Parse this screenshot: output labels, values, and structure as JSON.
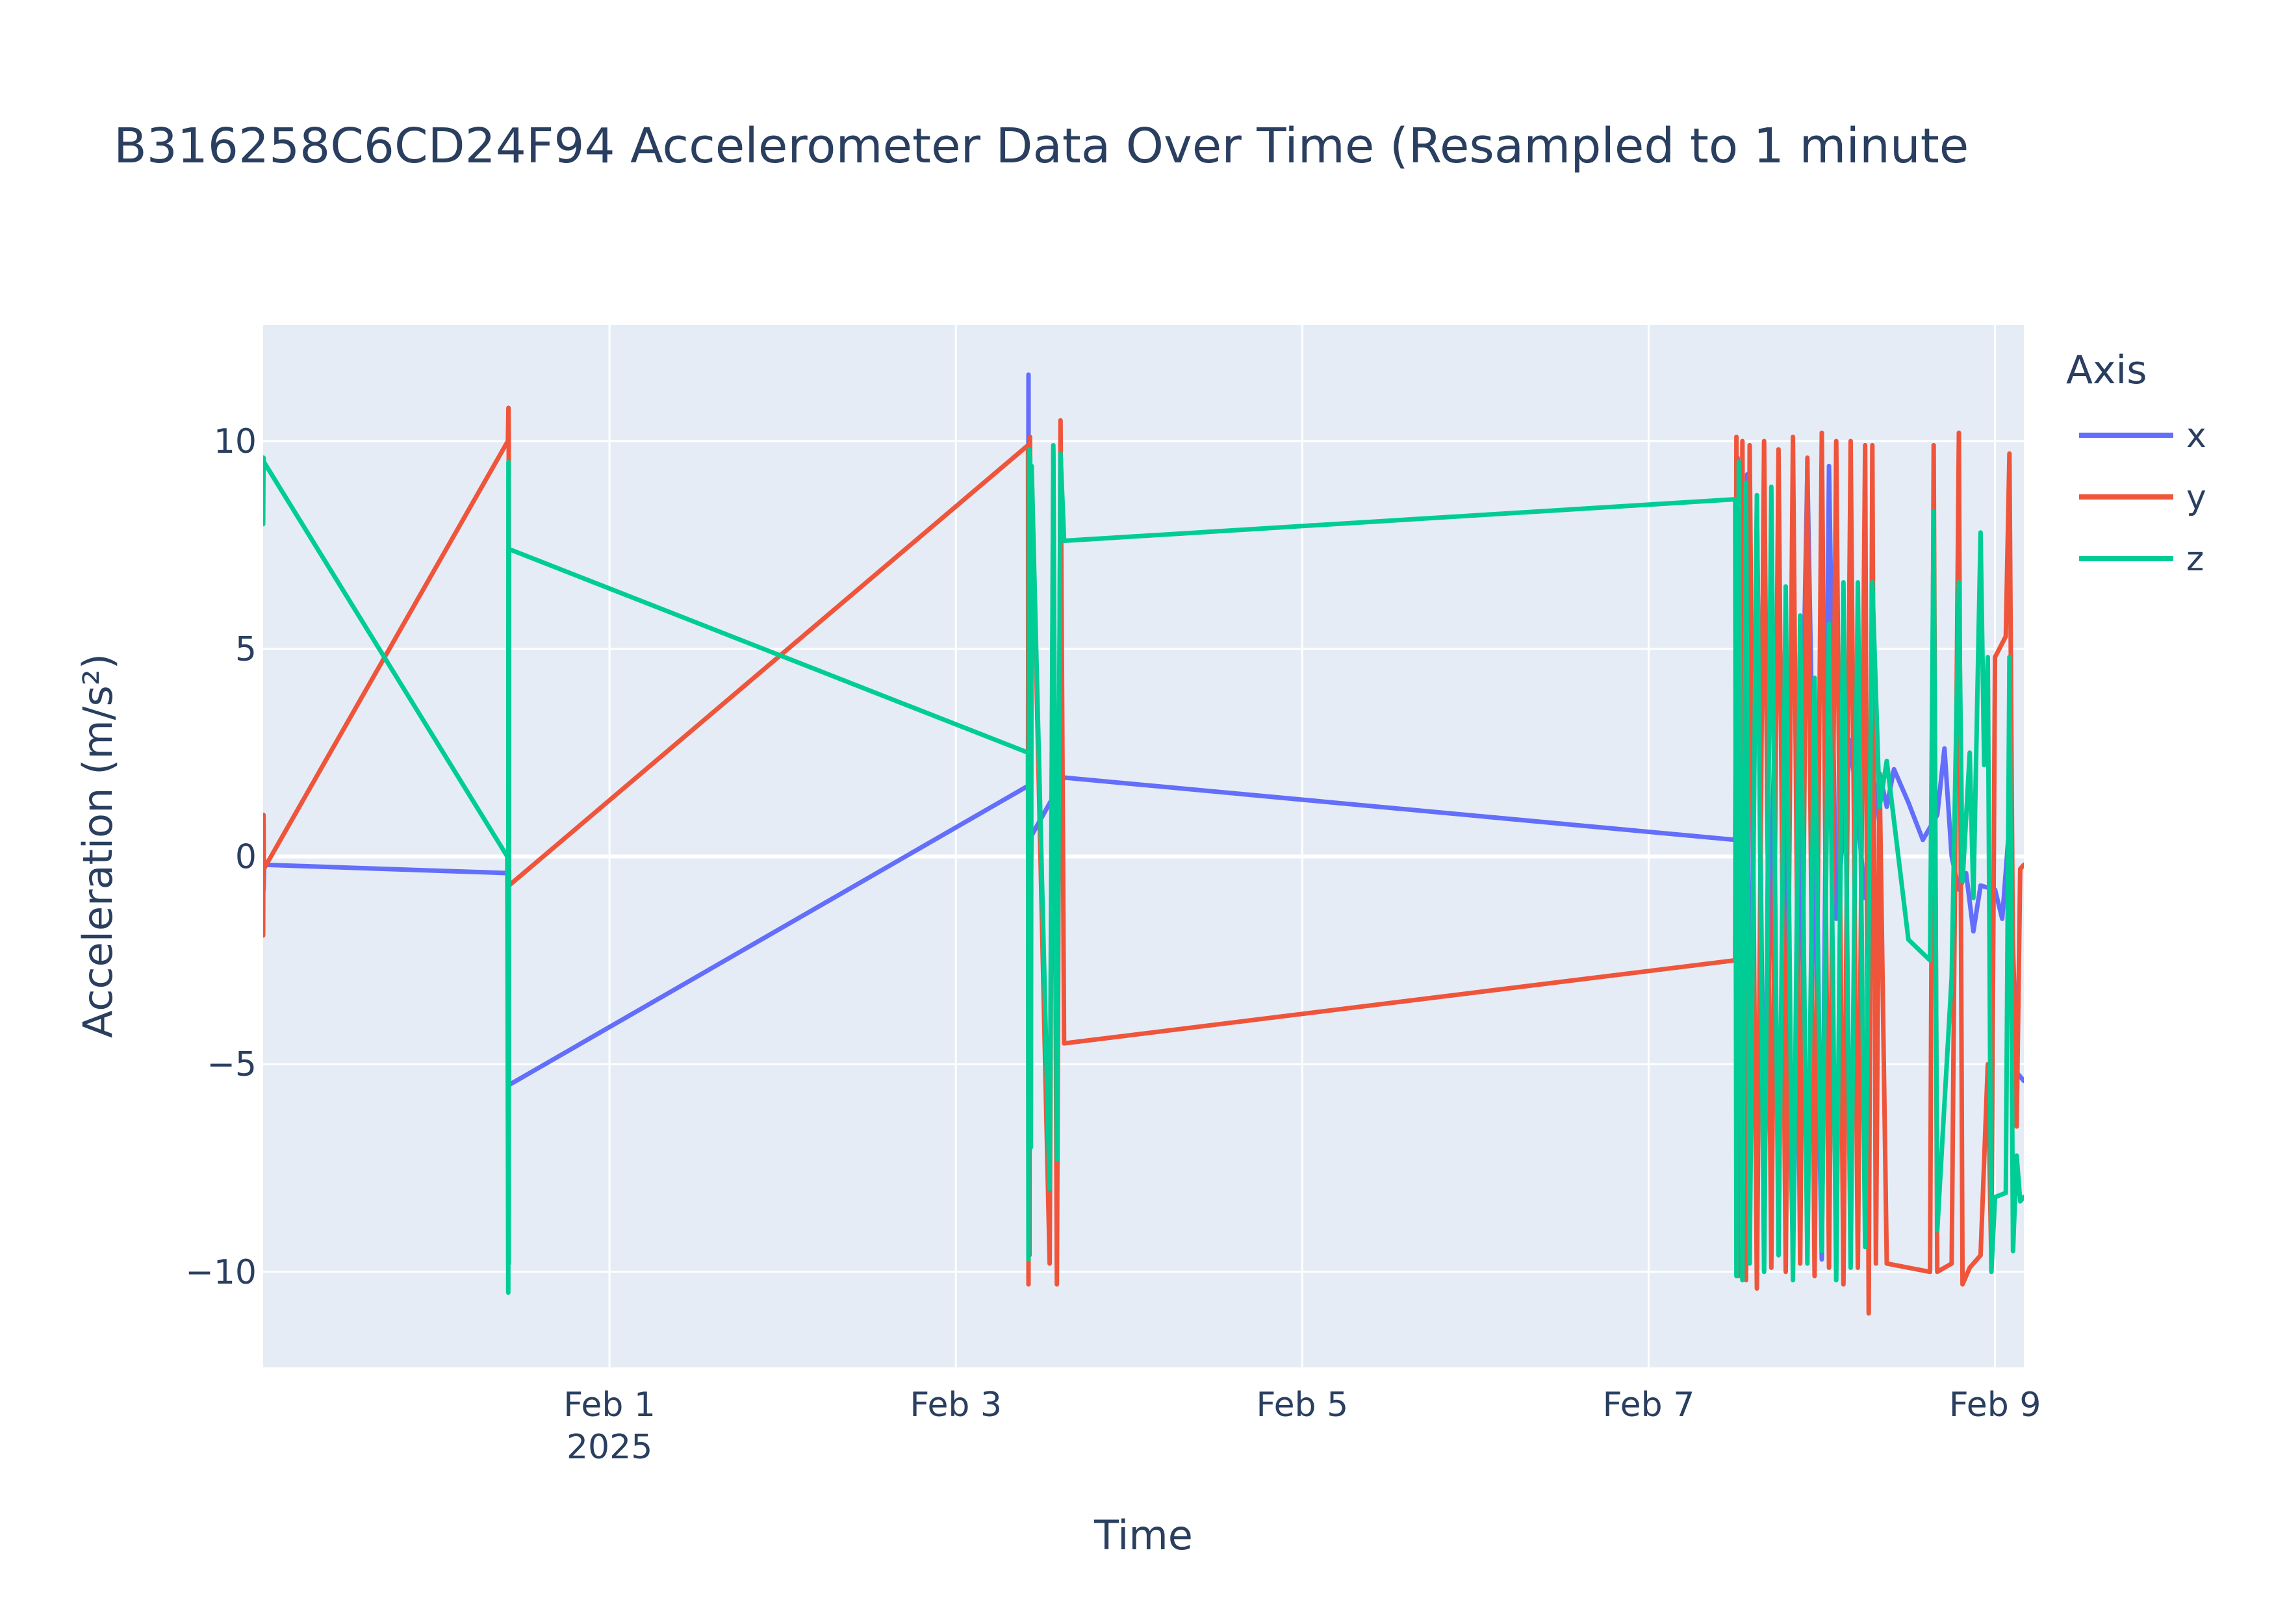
{
  "chart_data": {
    "type": "line",
    "title": "B316258C6CD24F94 Accelerometer Data Over Time (Resampled to 1 minute",
    "xlabel": "Time",
    "ylabel": "Acceleration (m/s²)",
    "xlim": [
      "2025-01-30 00:00",
      "2025-02-09 04:00"
    ],
    "ylim": [
      -12.3,
      12.8
    ],
    "x_ticks": [
      {
        "x": "2025-02-01 00:00",
        "label": "Feb 1",
        "sublabel": "2025"
      },
      {
        "x": "2025-02-03 00:00",
        "label": "Feb 3",
        "sublabel": ""
      },
      {
        "x": "2025-02-05 00:00",
        "label": "Feb 5",
        "sublabel": ""
      },
      {
        "x": "2025-02-07 00:00",
        "label": "Feb 7",
        "sublabel": ""
      },
      {
        "x": "2025-02-09 00:00",
        "label": "Feb 9",
        "sublabel": ""
      }
    ],
    "y_ticks": [
      {
        "y": 10,
        "label": "10"
      },
      {
        "y": 5,
        "label": "5"
      },
      {
        "y": 0,
        "label": "0"
      },
      {
        "y": -5,
        "label": "−5"
      },
      {
        "y": -10,
        "label": "−10"
      }
    ],
    "grid": true,
    "legend": {
      "title": "Axis",
      "position": "right"
    },
    "series": [
      {
        "name": "x",
        "color": "#636efa",
        "points": [
          [
            "2025-01-30 00:00",
            -0.3
          ],
          [
            "2025-01-30 00:04",
            -0.8
          ],
          [
            "2025-01-30 00:08",
            -0.2
          ],
          [
            "2025-01-31 10:00",
            -0.4
          ],
          [
            "2025-01-31 10:02",
            0.2
          ],
          [
            "2025-01-31 10:04",
            -5.5
          ],
          [
            "2025-02-03 10:00",
            1.7
          ],
          [
            "2025-02-03 10:04",
            11.6
          ],
          [
            "2025-02-03 10:08",
            -3.0
          ],
          [
            "2025-02-03 10:14",
            9.5
          ],
          [
            "2025-02-03 10:20",
            -2.0
          ],
          [
            "2025-02-03 10:28",
            0.5
          ],
          [
            "2025-02-03 15:00",
            1.9
          ],
          [
            "2025-02-07 12:00",
            0.4
          ],
          [
            "2025-02-07 12:20",
            9.6
          ],
          [
            "2025-02-07 12:40",
            -9.5
          ],
          [
            "2025-02-07 13:00",
            9.4
          ],
          [
            "2025-02-07 13:20",
            -9.6
          ],
          [
            "2025-02-07 13:40",
            9.2
          ],
          [
            "2025-02-07 14:00",
            -9.0
          ],
          [
            "2025-02-07 15:00",
            8.5
          ],
          [
            "2025-02-07 16:00",
            -8.0
          ],
          [
            "2025-02-07 18:00",
            7.0
          ],
          [
            "2025-02-07 20:00",
            -9.5
          ],
          [
            "2025-02-07 22:00",
            9.3
          ],
          [
            "2025-02-08 00:00",
            -9.7
          ],
          [
            "2025-02-08 01:00",
            9.4
          ],
          [
            "2025-02-08 02:00",
            -1.5
          ],
          [
            "2025-02-08 04:00",
            2.8
          ],
          [
            "2025-02-08 06:00",
            -1.0
          ],
          [
            "2025-02-08 08:00",
            2.0
          ],
          [
            "2025-02-08 09:00",
            1.2
          ],
          [
            "2025-02-08 10:00",
            2.1
          ],
          [
            "2025-02-08 12:00",
            1.3
          ],
          [
            "2025-02-08 14:00",
            0.4
          ],
          [
            "2025-02-08 16:00",
            1.0
          ],
          [
            "2025-02-08 17:00",
            2.6
          ],
          [
            "2025-02-08 18:00",
            0.0
          ],
          [
            "2025-02-08 19:00",
            -0.8
          ],
          [
            "2025-02-08 20:00",
            -0.4
          ],
          [
            "2025-02-08 21:00",
            -1.8
          ],
          [
            "2025-02-08 22:00",
            -0.7
          ],
          [
            "2025-02-09 00:00",
            -0.8
          ],
          [
            "2025-02-09 01:00",
            -1.5
          ],
          [
            "2025-02-09 02:00",
            0.8
          ],
          [
            "2025-02-09 03:00",
            -5.2
          ],
          [
            "2025-02-09 04:00",
            -5.4
          ]
        ]
      },
      {
        "name": "y",
        "color": "#ef553b",
        "points": [
          [
            "2025-01-30 00:00",
            -1.9
          ],
          [
            "2025-01-30 00:03",
            1.0
          ],
          [
            "2025-01-30 00:06",
            -0.3
          ],
          [
            "2025-01-31 09:55",
            10.0
          ],
          [
            "2025-01-31 10:00",
            10.8
          ],
          [
            "2025-01-31 10:02",
            10.1
          ],
          [
            "2025-01-31 10:04",
            -0.7
          ],
          [
            "2025-02-03 10:00",
            9.9
          ],
          [
            "2025-02-03 10:04",
            -10.3
          ],
          [
            "2025-02-03 10:08",
            9.6
          ],
          [
            "2025-02-03 10:12",
            -9.6
          ],
          [
            "2025-02-03 10:16",
            10.1
          ],
          [
            "2025-02-03 10:22",
            -4.5
          ],
          [
            "2025-02-03 10:30",
            9.4
          ],
          [
            "2025-02-03 13:00",
            -9.8
          ],
          [
            "2025-02-03 13:30",
            9.8
          ],
          [
            "2025-02-03 14:00",
            -10.3
          ],
          [
            "2025-02-03 14:30",
            10.5
          ],
          [
            "2025-02-03 15:00",
            -4.5
          ],
          [
            "2025-02-07 12:00",
            -2.5
          ],
          [
            "2025-02-07 12:10",
            10.1
          ],
          [
            "2025-02-07 12:30",
            -10.1
          ],
          [
            "2025-02-07 13:00",
            10.0
          ],
          [
            "2025-02-07 13:30",
            -10.2
          ],
          [
            "2025-02-07 14:00",
            9.9
          ],
          [
            "2025-02-07 15:00",
            -10.4
          ],
          [
            "2025-02-07 16:00",
            10.0
          ],
          [
            "2025-02-07 17:00",
            -9.9
          ],
          [
            "2025-02-07 18:00",
            9.8
          ],
          [
            "2025-02-07 19:00",
            -10.0
          ],
          [
            "2025-02-07 20:00",
            10.1
          ],
          [
            "2025-02-07 21:00",
            -9.8
          ],
          [
            "2025-02-07 22:00",
            9.6
          ],
          [
            "2025-02-07 23:00",
            -10.1
          ],
          [
            "2025-02-08 00:00",
            10.2
          ],
          [
            "2025-02-08 01:00",
            -9.9
          ],
          [
            "2025-02-08 02:00",
            10.0
          ],
          [
            "2025-02-08 03:00",
            -10.3
          ],
          [
            "2025-02-08 04:00",
            10.0
          ],
          [
            "2025-02-08 05:00",
            -9.9
          ],
          [
            "2025-02-08 06:00",
            9.9
          ],
          [
            "2025-02-08 06:30",
            -11.0
          ],
          [
            "2025-02-08 07:00",
            9.9
          ],
          [
            "2025-02-08 07:30",
            -9.8
          ],
          [
            "2025-02-08 08:00",
            2.0
          ],
          [
            "2025-02-08 09:00",
            -9.8
          ],
          [
            "2025-02-08 12:00",
            -9.9
          ],
          [
            "2025-02-08 15:00",
            -10.0
          ],
          [
            "2025-02-08 15:30",
            9.9
          ],
          [
            "2025-02-08 16:00",
            -10.0
          ],
          [
            "2025-02-08 18:00",
            -9.8
          ],
          [
            "2025-02-08 19:00",
            10.2
          ],
          [
            "2025-02-08 19:30",
            -10.3
          ],
          [
            "2025-02-08 20:30",
            -9.9
          ],
          [
            "2025-02-08 22:00",
            -9.6
          ],
          [
            "2025-02-08 23:00",
            -5.0
          ],
          [
            "2025-02-08 23:30",
            -9.8
          ],
          [
            "2025-02-09 00:00",
            4.8
          ],
          [
            "2025-02-09 01:30",
            5.3
          ],
          [
            "2025-02-09 02:00",
            9.7
          ],
          [
            "2025-02-09 02:30",
            -2.8
          ],
          [
            "2025-02-09 03:00",
            -6.5
          ],
          [
            "2025-02-09 03:30",
            -0.3
          ],
          [
            "2025-02-09 04:00",
            -0.2
          ]
        ]
      },
      {
        "name": "z",
        "color": "#00cc96",
        "points": [
          [
            "2025-01-30 00:00",
            8.0
          ],
          [
            "2025-01-30 00:03",
            9.6
          ],
          [
            "2025-01-30 00:06",
            9.5
          ],
          [
            "2025-01-31 09:50",
            0.0
          ],
          [
            "2025-01-31 09:58",
            -10.5
          ],
          [
            "2025-01-31 10:00",
            9.5
          ],
          [
            "2025-01-31 10:02",
            -9.8
          ],
          [
            "2025-01-31 10:04",
            7.4
          ],
          [
            "2025-02-03 10:00",
            2.5
          ],
          [
            "2025-02-03 10:04",
            -9.7
          ],
          [
            "2025-02-03 10:08",
            9.8
          ],
          [
            "2025-02-03 10:12",
            -3.2
          ],
          [
            "2025-02-03 10:18",
            9.6
          ],
          [
            "2025-02-03 10:24",
            -7.0
          ],
          [
            "2025-02-03 10:30",
            9.4
          ],
          [
            "2025-02-03 13:00",
            -8.0
          ],
          [
            "2025-02-03 13:30",
            9.9
          ],
          [
            "2025-02-03 14:00",
            -7.3
          ],
          [
            "2025-02-03 14:30",
            9.7
          ],
          [
            "2025-02-03 15:00",
            7.6
          ],
          [
            "2025-02-07 12:00",
            8.6
          ],
          [
            "2025-02-07 12:10",
            -10.1
          ],
          [
            "2025-02-07 12:30",
            9.5
          ],
          [
            "2025-02-07 13:00",
            -10.2
          ],
          [
            "2025-02-07 13:30",
            9.0
          ],
          [
            "2025-02-07 14:00",
            -9.8
          ],
          [
            "2025-02-07 15:00",
            8.7
          ],
          [
            "2025-02-07 16:00",
            -10.0
          ],
          [
            "2025-02-07 17:00",
            8.9
          ],
          [
            "2025-02-07 18:00",
            -9.6
          ],
          [
            "2025-02-07 19:00",
            6.5
          ],
          [
            "2025-02-07 20:00",
            -10.2
          ],
          [
            "2025-02-07 21:00",
            5.8
          ],
          [
            "2025-02-07 22:00",
            -9.8
          ],
          [
            "2025-02-07 23:00",
            4.3
          ],
          [
            "2025-02-08 00:00",
            -9.5
          ],
          [
            "2025-02-08 01:00",
            5.6
          ],
          [
            "2025-02-08 02:00",
            -10.2
          ],
          [
            "2025-02-08 03:00",
            6.6
          ],
          [
            "2025-02-08 04:00",
            -9.9
          ],
          [
            "2025-02-08 05:00",
            6.6
          ],
          [
            "2025-02-08 06:00",
            -9.4
          ],
          [
            "2025-02-08 07:00",
            6.6
          ],
          [
            "2025-02-08 08:00",
            1.2
          ],
          [
            "2025-02-08 09:00",
            2.3
          ],
          [
            "2025-02-08 12:00",
            -2.0
          ],
          [
            "2025-02-08 15:00",
            -2.5
          ],
          [
            "2025-02-08 15:30",
            8.3
          ],
          [
            "2025-02-08 16:00",
            -9.0
          ],
          [
            "2025-02-08 18:00",
            -2.9
          ],
          [
            "2025-02-08 19:00",
            6.6
          ],
          [
            "2025-02-08 19:30",
            -0.6
          ],
          [
            "2025-02-08 20:30",
            2.5
          ],
          [
            "2025-02-08 21:00",
            -1.0
          ],
          [
            "2025-02-08 22:00",
            7.8
          ],
          [
            "2025-02-08 22:30",
            2.2
          ],
          [
            "2025-02-08 23:00",
            4.8
          ],
          [
            "2025-02-08 23:30",
            -10.0
          ],
          [
            "2025-02-09 00:00",
            -8.2
          ],
          [
            "2025-02-09 01:30",
            -8.1
          ],
          [
            "2025-02-09 02:00",
            4.8
          ],
          [
            "2025-02-09 02:30",
            -9.5
          ],
          [
            "2025-02-09 03:00",
            -7.2
          ],
          [
            "2025-02-09 03:30",
            -8.3
          ],
          [
            "2025-02-09 04:00",
            -8.2
          ]
        ]
      }
    ]
  }
}
